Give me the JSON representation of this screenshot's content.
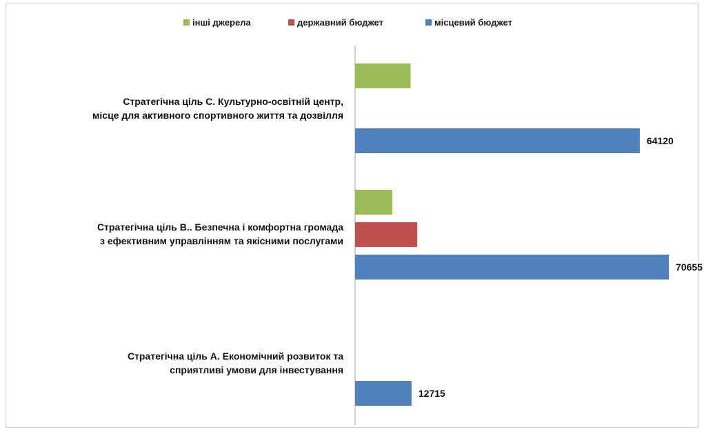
{
  "chart_data": {
    "type": "bar",
    "orientation": "horizontal",
    "title": "",
    "categories": [
      {
        "lines": [
          "Стратегічна ціль  С. Культурно-освітній центр,",
          "місце для активного спортивного  життя та дозвілля"
        ]
      },
      {
        "lines": [
          "Стратегічна ціль В.. Безпечна і комфортна громада",
          "з ефективним управлінням та якісними послугами"
        ]
      },
      {
        "lines": [
          "Стратегічна  ціль А. Економічний розвиток та",
          "сприятливі умови  для інвестування"
        ]
      }
    ],
    "series": [
      {
        "name": "інші джерела",
        "color": "#9bbb59",
        "values": [
          12500,
          8400,
          0
        ],
        "labels": [
          "",
          "",
          ""
        ]
      },
      {
        "name": "державний бюджет",
        "color": "#c0504d",
        "values": [
          0,
          14000,
          0
        ],
        "labels": [
          "",
          "",
          ""
        ]
      },
      {
        "name": "місцевий бюджет",
        "color": "#4f81bd",
        "values": [
          64120,
          70655,
          12715
        ],
        "labels": [
          "64120",
          "70655",
          "12715"
        ]
      }
    ],
    "legend_order": [
      "інші джерела",
      "державний бюджет",
      "місцевий бюджет"
    ],
    "legend_position": "top",
    "xlim": [
      0,
      70655
    ],
    "grid": false,
    "xlabel": "",
    "ylabel": ""
  }
}
